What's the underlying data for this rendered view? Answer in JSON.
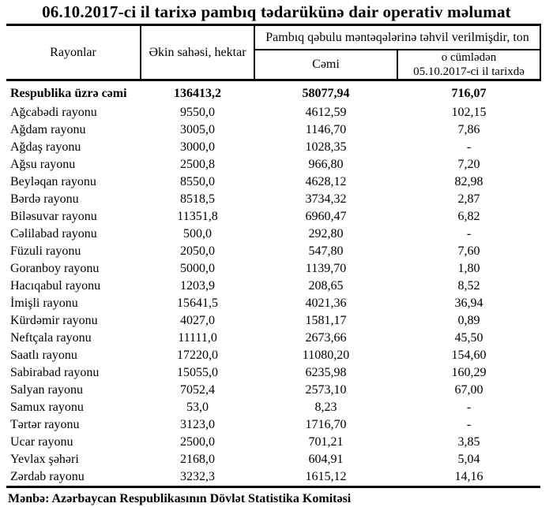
{
  "title": "06.10.2017-ci il tarixə pambıq tədarükünə dair operativ məlumat",
  "colors": {
    "text": "#000000",
    "background": "#ffffff",
    "border": "#000000"
  },
  "table": {
    "headers": {
      "regions": "Rayonlar",
      "area": "Əkin sahəsi, hektar",
      "delivered_group": "Pambıq qəbulu məntəqələrinə təhvil verilmişdir, ton",
      "total": "Cəmi",
      "including_line1": "o cümlədən",
      "including_line2": "05.10.2017-ci il tarixdə"
    },
    "total_row": {
      "region": "Respublika üzrə cəmi",
      "area": "136413,2",
      "total": "58077,94",
      "daily": "716,07"
    },
    "rows": [
      {
        "region": "Ağcabədi rayonu",
        "area": "9550,0",
        "total": "4612,59",
        "daily": "102,15"
      },
      {
        "region": "Ağdam rayonu",
        "area": "3005,0",
        "total": "1146,70",
        "daily": "7,86"
      },
      {
        "region": "Ağdaş rayonu",
        "area": "3000,0",
        "total": "1028,35",
        "daily": "-"
      },
      {
        "region": "Ağsu rayonu",
        "area": "2500,8",
        "total": "966,80",
        "daily": "7,20"
      },
      {
        "region": "Beyləqan rayonu",
        "area": "8550,0",
        "total": "4628,12",
        "daily": "82,98"
      },
      {
        "region": "Bərdə rayonu",
        "area": "8518,5",
        "total": "3734,32",
        "daily": "2,87"
      },
      {
        "region": "Biləsuvar rayonu",
        "area": "11351,8",
        "total": "6960,47",
        "daily": "6,82"
      },
      {
        "region": "Cəlilabad rayonu",
        "area": "500,0",
        "total": "292,80",
        "daily": "-"
      },
      {
        "region": "Füzuli rayonu",
        "area": "2050,0",
        "total": "547,80",
        "daily": "7,60"
      },
      {
        "region": "Goranboy rayonu",
        "area": "5000,0",
        "total": "1139,70",
        "daily": "1,80"
      },
      {
        "region": "Hacıqabul rayonu",
        "area": "1203,9",
        "total": "208,65",
        "daily": "8,52"
      },
      {
        "region": "İmişli rayonu",
        "area": "15641,5",
        "total": "4021,36",
        "daily": "36,94"
      },
      {
        "region": "Kürdəmir rayonu",
        "area": "4027,0",
        "total": "1581,17",
        "daily": "0,89"
      },
      {
        "region": "Neftçala rayonu",
        "area": "11111,0",
        "total": "2673,66",
        "daily": "45,50"
      },
      {
        "region": "Saatlı rayonu",
        "area": "17220,0",
        "total": "11080,20",
        "daily": "154,60"
      },
      {
        "region": "Sabirabad rayonu",
        "area": "15055,0",
        "total": "6235,98",
        "daily": "160,29"
      },
      {
        "region": "Salyan rayonu",
        "area": "7052,4",
        "total": "2573,10",
        "daily": "67,00"
      },
      {
        "region": "Samux rayonu",
        "area": "53,0",
        "total": "8,23",
        "daily": "-"
      },
      {
        "region": "Tərtər rayonu",
        "area": "3123,0",
        "total": "1716,70",
        "daily": "-"
      },
      {
        "region": "Ucar rayonu",
        "area": "2500,0",
        "total": "701,21",
        "daily": "3,85"
      },
      {
        "region": "Yevlax şəhəri",
        "area": "2168,0",
        "total": "604,91",
        "daily": "5,04"
      },
      {
        "region": "Zərdab rayonu",
        "area": "3232,3",
        "total": "1615,12",
        "daily": "14,16"
      }
    ]
  },
  "footer": {
    "source": "Mənbə: Azərbaycan Respublikasının Dövlət Statistika Komitəsi"
  }
}
